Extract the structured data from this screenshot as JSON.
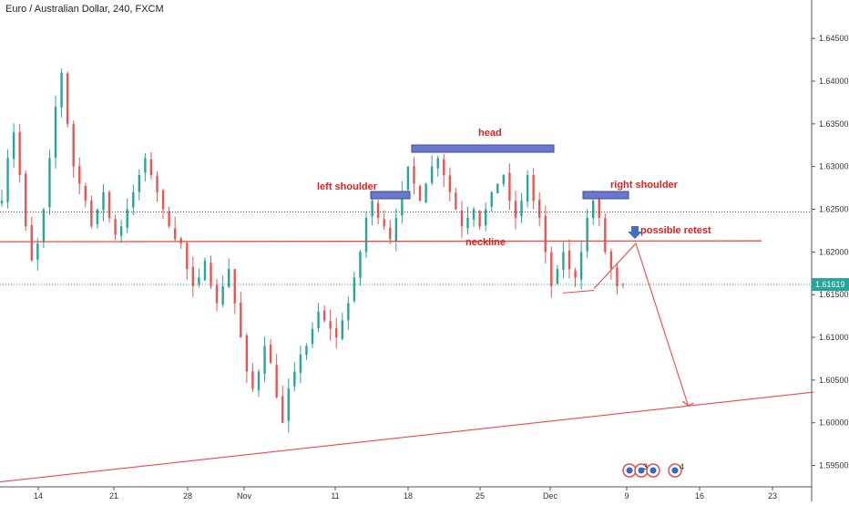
{
  "chart_data": {
    "type": "candlestick",
    "title": "Euro / Australian Dollar, 240, FXCM",
    "ylim": [
      1.5925,
      1.6495
    ],
    "x_ticks": [
      "14",
      "21",
      "28",
      "Nov",
      "11",
      "18",
      "25",
      "Dec",
      "9",
      "16",
      "23"
    ],
    "y_ticks": [
      "1.64500",
      "1.64000",
      "1.63500",
      "1.63000",
      "1.62500",
      "1.62000",
      "1.61500",
      "1.61000",
      "1.60500",
      "1.60000",
      "1.59500"
    ],
    "last_price": "1.61619",
    "last_price_value": 1.61619,
    "colors": {
      "up": "#26a69a",
      "down": "#ef5350",
      "trendline": "#f04848",
      "annotation_text": "#e02020",
      "shoulder_box": "#6b77c9",
      "last_price_line": "#26a69a",
      "last_price_badge": "#26a69a"
    },
    "reference_level": 1.6247,
    "neckline": [
      [
        "Oct 9",
        1.6212
      ],
      [
        "Dec 22",
        1.6213
      ]
    ],
    "support_trendline": [
      [
        "Oct 9",
        1.5929
      ],
      [
        "Dec 27",
        1.6036
      ]
    ],
    "projection_path": [
      [
        "Dec 6",
        1.6157
      ],
      [
        "Dec 10",
        1.621
      ],
      [
        "Dec 15",
        1.602
      ]
    ],
    "right_low_line": [
      [
        "Dec 3",
        1.6152
      ],
      [
        "Dec 6",
        1.6155
      ]
    ],
    "annotations": {
      "head": "head",
      "left_shoulder": "left shoulder",
      "right_shoulder": "right shoulder",
      "neckline": "neckline",
      "possible_retest": "possible retest"
    },
    "event_badges": [
      "3",
      "4"
    ],
    "price_path": [
      [
        1.626,
        1.631,
        1.634,
        1.629,
        1.623,
        1.619,
        1.621,
        1.625,
        1.631,
        1.637,
        1.641,
        1.635,
        1.63,
        1.628,
        1.626,
        1.623,
        1.625,
        1.627,
        1.624,
        1.622,
        1.623,
        1.625,
        1.627,
        1.629,
        1.631,
        1.629,
        1.627,
        1.625,
        1.623,
        1.6215
      ],
      [
        1.621,
        1.618,
        1.616,
        1.617,
        1.619,
        1.616,
        1.614,
        1.616,
        1.618,
        1.614,
        1.61,
        1.606,
        1.604,
        1.606,
        1.609,
        1.607,
        1.603,
        1.6,
        1.604,
        1.606,
        1.608,
        1.609,
        1.611,
        1.613,
        1.612,
        1.611,
        1.61,
        1.612,
        1.614,
        1.617
      ],
      [
        1.62,
        1.624,
        1.626,
        1.624,
        1.623,
        1.6215,
        1.624,
        1.627,
        1.63,
        1.628,
        1.626,
        1.628,
        1.63,
        1.631,
        1.629,
        1.627,
        1.625,
        1.623,
        1.624,
        1.625,
        1.623,
        1.625,
        1.627,
        1.628,
        1.629,
        1.626,
        1.624,
        1.626,
        1.629,
        1.626
      ],
      [
        1.624,
        1.62,
        1.616,
        1.618,
        1.62,
        1.618,
        1.617,
        1.62,
        1.624,
        1.626,
        1.624,
        1.62,
        1.618,
        1.616,
        1.6162
      ]
    ]
  }
}
